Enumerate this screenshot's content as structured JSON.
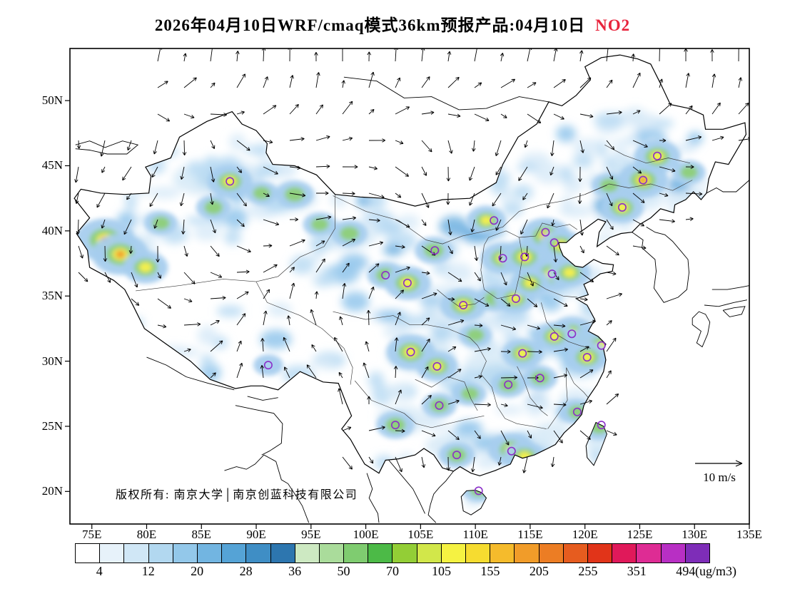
{
  "title": {
    "main": "2026年04月10日WRF/cmaq模式36km预报产品:04月10日",
    "species": "NO2"
  },
  "plot": {
    "copyright": "版权所有: 南京大学│南京创蓝科技有限公司",
    "wind_reference_label": "10 m/s",
    "unit_label": "(ug/m3)"
  },
  "colors": {
    "pollutant_label": "#e8243c",
    "city_marker": "#8B2FC9"
  },
  "axes": {
    "lat_ticks": [
      "50N",
      "45N",
      "40N",
      "35N",
      "30N",
      "25N",
      "20N"
    ],
    "lon_ticks": [
      "75E",
      "80E",
      "85E",
      "90E",
      "95E",
      "100E",
      "105E",
      "110E",
      "115E",
      "120E",
      "125E",
      "130E",
      "135E"
    ]
  },
  "colorbar": {
    "labels": [
      "4",
      "12",
      "20",
      "28",
      "36",
      "50",
      "70",
      "105",
      "155",
      "205",
      "255",
      "351",
      "494"
    ],
    "colors": [
      "#FFFFFF",
      "#E7F2FA",
      "#D0E7F6",
      "#B2D8F0",
      "#93C8EA",
      "#72B5E1",
      "#55A3D6",
      "#3F8EC5",
      "#2D76AF",
      "#CDE9C2",
      "#AADC9B",
      "#7FCC70",
      "#4CBA47",
      "#93CE36",
      "#D2E74A",
      "#F5F242",
      "#F6DC30",
      "#F5BB2C",
      "#F19C29",
      "#EC7D24",
      "#E65C1F",
      "#E13419",
      "#E0195A",
      "#DE2C94",
      "#B82FC4",
      "#7E2DB8"
    ]
  },
  "chart_data": {
    "type": "heatmap",
    "title": "2026年04月10日WRF/cmaq模式36km预报产品:04月10日 NO2",
    "model": "WRF/cmaq",
    "grid_resolution": "36km",
    "forecast_issue_date": "2026年04月10日",
    "forecast_valid_date": "04月10日",
    "pollutant": "NO2",
    "unit": "ug/m3",
    "lon_ticks_deg_e": [
      75,
      80,
      85,
      90,
      95,
      100,
      105,
      110,
      115,
      120,
      125,
      130,
      135
    ],
    "lat_ticks_deg_n": [
      20,
      25,
      30,
      35,
      40,
      45,
      50
    ],
    "colorbar_levels": [
      4,
      12,
      20,
      28,
      36,
      50,
      70,
      105,
      155,
      205,
      255,
      351,
      494
    ],
    "wind_reference_ms": 10,
    "legend_position": "bottom",
    "hotspots": [
      {
        "lon": 76.2,
        "lat": 39.3,
        "value": 230
      },
      {
        "lon": 77.6,
        "lat": 38.2,
        "value": 200
      },
      {
        "lon": 79.9,
        "lat": 37.2,
        "value": 130
      },
      {
        "lon": 81.3,
        "lat": 40.6,
        "value": 60
      },
      {
        "lon": 86.1,
        "lat": 41.8,
        "value": 70
      },
      {
        "lon": 87.6,
        "lat": 43.8,
        "value": 130
      },
      {
        "lon": 90.5,
        "lat": 42.9,
        "value": 60
      },
      {
        "lon": 93.5,
        "lat": 42.8,
        "value": 90
      },
      {
        "lon": 95.8,
        "lat": 40.5,
        "value": 60
      },
      {
        "lon": 98.5,
        "lat": 39.8,
        "value": 80
      },
      {
        "lon": 101.8,
        "lat": 36.6,
        "value": 80
      },
      {
        "lon": 103.8,
        "lat": 36.0,
        "value": 140
      },
      {
        "lon": 106.2,
        "lat": 38.5,
        "value": 90
      },
      {
        "lon": 108.9,
        "lat": 34.3,
        "value": 140
      },
      {
        "lon": 111.7,
        "lat": 34.8,
        "value": 80
      },
      {
        "lon": 112.5,
        "lat": 37.9,
        "value": 130
      },
      {
        "lon": 111.0,
        "lat": 40.8,
        "value": 100
      },
      {
        "lon": 114.5,
        "lat": 38.0,
        "value": 150
      },
      {
        "lon": 116.4,
        "lat": 39.6,
        "value": 160
      },
      {
        "lon": 117.8,
        "lat": 38.9,
        "value": 120
      },
      {
        "lon": 117.0,
        "lat": 36.7,
        "value": 150
      },
      {
        "lon": 118.6,
        "lat": 36.8,
        "value": 110
      },
      {
        "lon": 113.6,
        "lat": 34.8,
        "value": 110
      },
      {
        "lon": 115.0,
        "lat": 36.0,
        "value": 100
      },
      {
        "lon": 104.1,
        "lat": 30.7,
        "value": 150
      },
      {
        "lon": 106.5,
        "lat": 29.6,
        "value": 110
      },
      {
        "lon": 110.0,
        "lat": 32.0,
        "value": 60
      },
      {
        "lon": 114.3,
        "lat": 30.6,
        "value": 110
      },
      {
        "lon": 113.0,
        "lat": 28.2,
        "value": 80
      },
      {
        "lon": 109.5,
        "lat": 27.5,
        "value": 60
      },
      {
        "lon": 115.9,
        "lat": 28.7,
        "value": 70
      },
      {
        "lon": 118.8,
        "lat": 32.1,
        "value": 140
      },
      {
        "lon": 120.6,
        "lat": 31.3,
        "value": 160
      },
      {
        "lon": 121.5,
        "lat": 31.1,
        "value": 150
      },
      {
        "lon": 120.2,
        "lat": 30.3,
        "value": 120
      },
      {
        "lon": 117.2,
        "lat": 31.9,
        "value": 100
      },
      {
        "lon": 106.7,
        "lat": 26.6,
        "value": 70
      },
      {
        "lon": 102.7,
        "lat": 25.1,
        "value": 90
      },
      {
        "lon": 108.3,
        "lat": 22.8,
        "value": 80
      },
      {
        "lon": 113.3,
        "lat": 23.2,
        "value": 140
      },
      {
        "lon": 114.5,
        "lat": 22.7,
        "value": 110
      },
      {
        "lon": 119.3,
        "lat": 26.1,
        "value": 70
      },
      {
        "lon": 121.3,
        "lat": 25.0,
        "value": 90
      },
      {
        "lon": 110.3,
        "lat": 20.1,
        "value": 60
      },
      {
        "lon": 125.3,
        "lat": 43.9,
        "value": 160
      },
      {
        "lon": 126.6,
        "lat": 45.7,
        "value": 140
      },
      {
        "lon": 123.4,
        "lat": 41.8,
        "value": 120
      },
      {
        "lon": 122.2,
        "lat": 43.5,
        "value": 70
      },
      {
        "lon": 129.5,
        "lat": 44.5,
        "value": 60
      },
      {
        "lon": 91.1,
        "lat": 29.7,
        "value": 40
      }
    ],
    "city_markers": [
      {
        "lon": 87.6,
        "lat": 43.8
      },
      {
        "lon": 111.7,
        "lat": 40.8
      },
      {
        "lon": 116.4,
        "lat": 39.9
      },
      {
        "lon": 114.5,
        "lat": 38.0
      },
      {
        "lon": 117.2,
        "lat": 39.1
      },
      {
        "lon": 112.5,
        "lat": 37.9
      },
      {
        "lon": 117.0,
        "lat": 36.7
      },
      {
        "lon": 113.7,
        "lat": 34.8
      },
      {
        "lon": 108.9,
        "lat": 34.3
      },
      {
        "lon": 106.3,
        "lat": 38.5
      },
      {
        "lon": 103.8,
        "lat": 36.0
      },
      {
        "lon": 101.8,
        "lat": 36.6
      },
      {
        "lon": 91.1,
        "lat": 29.7
      },
      {
        "lon": 104.1,
        "lat": 30.7
      },
      {
        "lon": 106.5,
        "lat": 29.6
      },
      {
        "lon": 114.3,
        "lat": 30.6
      },
      {
        "lon": 117.2,
        "lat": 31.9
      },
      {
        "lon": 118.8,
        "lat": 32.1
      },
      {
        "lon": 121.5,
        "lat": 31.2
      },
      {
        "lon": 120.2,
        "lat": 30.3
      },
      {
        "lon": 115.9,
        "lat": 28.7
      },
      {
        "lon": 113.0,
        "lat": 28.2
      },
      {
        "lon": 106.7,
        "lat": 26.6
      },
      {
        "lon": 102.7,
        "lat": 25.1
      },
      {
        "lon": 119.3,
        "lat": 26.1
      },
      {
        "lon": 121.5,
        "lat": 25.1
      },
      {
        "lon": 113.3,
        "lat": 23.1
      },
      {
        "lon": 108.3,
        "lat": 22.8
      },
      {
        "lon": 110.3,
        "lat": 20.05
      },
      {
        "lon": 126.6,
        "lat": 45.75
      },
      {
        "lon": 125.3,
        "lat": 43.9
      },
      {
        "lon": 123.4,
        "lat": 41.8
      }
    ]
  }
}
